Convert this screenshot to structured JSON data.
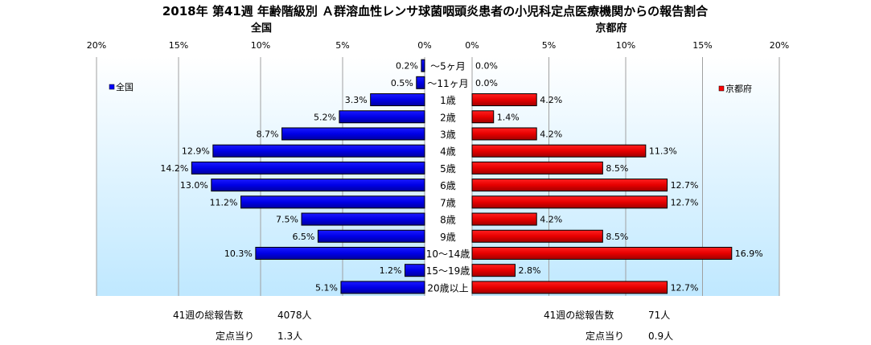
{
  "chart_data": {
    "type": "bar",
    "title": "2018年 第41週 年齢階級別 Ａ群溶血性レンサ球菌咽頭炎患者の小児科定点医療機関からの報告割合",
    "categories": [
      "～5ヶ月",
      "～11ヶ月",
      "1歳",
      "2歳",
      "3歳",
      "4歳",
      "5歳",
      "6歳",
      "7歳",
      "8歳",
      "9歳",
      "10～14歳",
      "15～19歳",
      "20歳以上"
    ],
    "left_ticks": [
      "20%",
      "15%",
      "10%",
      "5%",
      "0%"
    ],
    "right_ticks": [
      "0%",
      "5%",
      "10%",
      "15%",
      "20%"
    ],
    "xlim": [
      0,
      20
    ],
    "series": [
      {
        "name": "全国",
        "panel_title": "全国",
        "color": "#0000ff",
        "values": [
          0.2,
          0.5,
          3.3,
          5.2,
          8.7,
          12.9,
          14.2,
          13.0,
          11.2,
          7.5,
          6.5,
          10.3,
          1.2,
          5.1
        ],
        "labels": [
          "0.2%",
          "0.5%",
          "3.3%",
          "5.2%",
          "8.7%",
          "12.9%",
          "14.2%",
          "13.0%",
          "11.2%",
          "7.5%",
          "6.5%",
          "10.3%",
          "1.2%",
          "5.1%"
        ]
      },
      {
        "name": "京都府",
        "panel_title": "京都府",
        "color": "#ff0000",
        "values": [
          0.0,
          0.0,
          4.2,
          1.4,
          4.2,
          11.3,
          8.5,
          12.7,
          12.7,
          4.2,
          8.5,
          16.9,
          2.8,
          12.7
        ],
        "labels": [
          "0.0%",
          "0.0%",
          "4.2%",
          "1.4%",
          "4.2%",
          "11.3%",
          "8.5%",
          "12.7%",
          "12.7%",
          "4.2%",
          "8.5%",
          "16.9%",
          "2.8%",
          "12.7%"
        ]
      }
    ],
    "grid": true,
    "legend": [
      "top-left",
      "top-right"
    ]
  },
  "footer": {
    "national": {
      "total_label": "41週の総報告数",
      "total_value": "4078人",
      "per_label": "定点当り",
      "per_value": "1.3人"
    },
    "kyoto": {
      "total_label": "41週の総報告数",
      "total_value": "71人",
      "per_label": "定点当り",
      "per_value": "0.9人"
    }
  }
}
